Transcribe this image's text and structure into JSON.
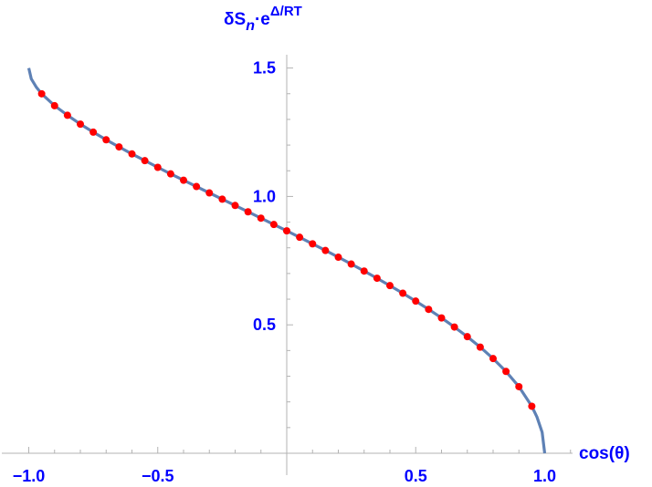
{
  "chart_data": {
    "type": "line",
    "title": "",
    "xlabel": "cos(θ)",
    "ylabel": {
      "base": "δS",
      "sub": "n",
      "dot": "·e",
      "sup": "Δ/RT"
    },
    "xlim": [
      -1.05,
      1.1
    ],
    "ylim": [
      0,
      1.58
    ],
    "x_ticks": [
      -1.0,
      -0.5,
      0.5,
      1.0
    ],
    "x_tick_labels": [
      "-1.0",
      "-0.5",
      "0.5",
      "1.0"
    ],
    "y_ticks": [
      0.5,
      1.0,
      1.5
    ],
    "y_tick_labels": [
      "0.5",
      "1.0",
      "1.5"
    ],
    "grid": false,
    "colors": {
      "curve": "#5e81b5",
      "points": "#ff0000",
      "labels": "#0000ff",
      "axes": "#b3b3b3"
    },
    "series": [
      {
        "kind": "line",
        "x": [
          -1,
          -0.99,
          -0.97,
          -0.95,
          -0.9,
          -0.85,
          -0.8,
          -0.75,
          -0.7,
          -0.65,
          -0.6,
          -0.55,
          -0.5,
          -0.45,
          -0.4,
          -0.35,
          -0.3,
          -0.25,
          -0.2,
          -0.15,
          -0.1,
          -0.05,
          0,
          0.05,
          0.1,
          0.15,
          0.2,
          0.25,
          0.3,
          0.35,
          0.4,
          0.45,
          0.5,
          0.55,
          0.6,
          0.65,
          0.7,
          0.75,
          0.8,
          0.85,
          0.9,
          0.95,
          0.97,
          0.99,
          1
        ],
        "y": [
          1.5,
          1.4575,
          1.4242,
          1.3998,
          1.3533,
          1.316,
          1.2815,
          1.2503,
          1.2205,
          1.1929,
          1.1655,
          1.1394,
          1.1133,
          1.0878,
          1.0631,
          1.0385,
          1.0137,
          0.9893,
          0.9648,
          0.9402,
          0.9154,
          0.8907,
          0.866,
          0.841,
          0.8154,
          0.7896,
          0.7634,
          0.7367,
          0.7095,
          0.6815,
          0.6528,
          0.6231,
          0.5924,
          0.5604,
          0.5269,
          0.4915,
          0.4539,
          0.4133,
          0.3687,
          0.3185,
          0.2594,
          0.183,
          0.1413,
          0.0817,
          0
        ]
      },
      {
        "kind": "points",
        "x": [
          -0.95,
          -0.9,
          -0.85,
          -0.8,
          -0.75,
          -0.7,
          -0.65,
          -0.6,
          -0.55,
          -0.5,
          -0.45,
          -0.4,
          -0.35,
          -0.3,
          -0.25,
          -0.2,
          -0.15,
          -0.1,
          -0.05,
          0,
          0.05,
          0.1,
          0.15,
          0.2,
          0.25,
          0.3,
          0.35,
          0.4,
          0.45,
          0.5,
          0.55,
          0.6,
          0.65,
          0.7,
          0.75,
          0.8,
          0.85,
          0.9,
          0.95
        ],
        "y": [
          1.3998,
          1.3533,
          1.316,
          1.2815,
          1.2503,
          1.2205,
          1.1929,
          1.1655,
          1.1394,
          1.1133,
          1.0878,
          1.0631,
          1.0385,
          1.0137,
          0.9893,
          0.9648,
          0.9402,
          0.9154,
          0.8907,
          0.866,
          0.841,
          0.8154,
          0.7896,
          0.7634,
          0.7367,
          0.7095,
          0.6815,
          0.6528,
          0.6231,
          0.5924,
          0.5604,
          0.5269,
          0.4915,
          0.4539,
          0.4133,
          0.3687,
          0.3185,
          0.2594,
          0.183
        ]
      }
    ]
  }
}
